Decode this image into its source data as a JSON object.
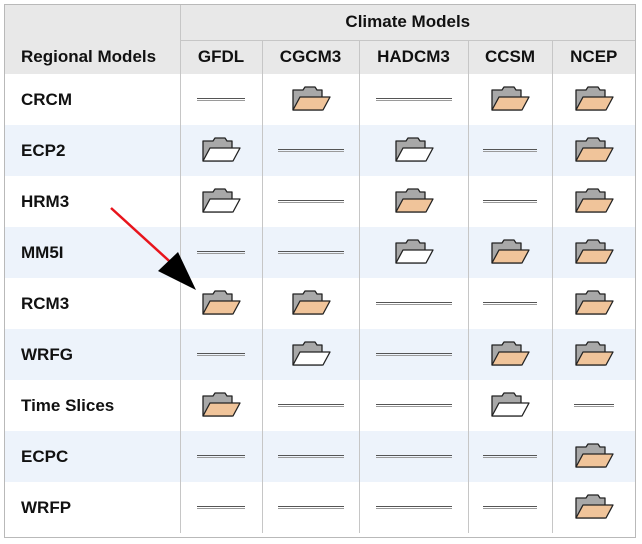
{
  "header": {
    "climate_models_title": "Climate Models",
    "regional_models_title": "Regional Models"
  },
  "columns": [
    "GFDL",
    "CGCM3",
    "HADCM3",
    "CCSM",
    "NCEP"
  ],
  "rows": [
    {
      "name": "CRCM",
      "cells": [
        "none",
        "full",
        "none",
        "full",
        "full"
      ]
    },
    {
      "name": "ECP2",
      "cells": [
        "empty",
        "none",
        "empty",
        "none",
        "full"
      ]
    },
    {
      "name": "HRM3",
      "cells": [
        "empty",
        "none",
        "full",
        "none",
        "full"
      ]
    },
    {
      "name": "MM5I",
      "cells": [
        "none",
        "none",
        "empty",
        "full",
        "full"
      ]
    },
    {
      "name": "RCM3",
      "cells": [
        "full",
        "full",
        "none",
        "none",
        "full"
      ]
    },
    {
      "name": "WRFG",
      "cells": [
        "none",
        "empty",
        "none",
        "full",
        "full"
      ]
    },
    {
      "name": "Time Slices",
      "cells": [
        "full",
        "none",
        "none",
        "empty",
        "none"
      ]
    },
    {
      "name": "ECPC",
      "cells": [
        "none",
        "none",
        "none",
        "none",
        "full"
      ]
    },
    {
      "name": "WRFP",
      "cells": [
        "none",
        "none",
        "none",
        "none",
        "full"
      ]
    }
  ],
  "icons": {
    "full": "folder-full-icon",
    "empty": "folder-empty-icon",
    "none": "dash-line"
  },
  "colors": {
    "folder_fill": "#f0c49a",
    "folder_tab": "#a8a8a8",
    "alt_row": "#edf3fb",
    "header_bg": "#e8e8e8",
    "arrow": "#e8141c"
  }
}
